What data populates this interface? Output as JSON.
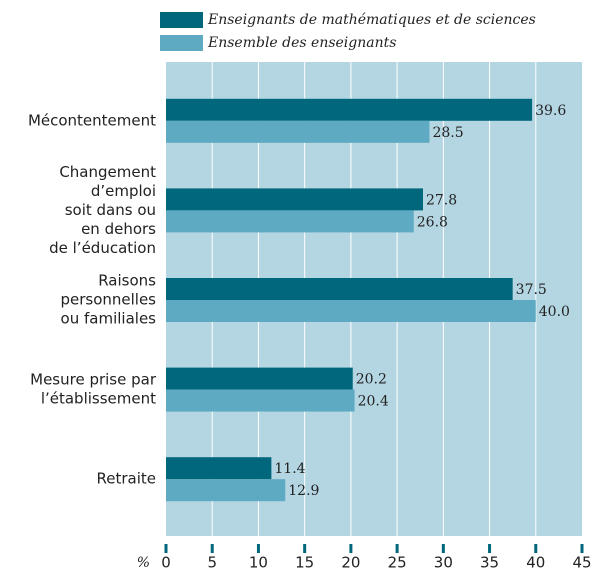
{
  "chart_data": {
    "type": "bar",
    "orientation": "horizontal",
    "categories": [
      [
        "Mécontentement"
      ],
      [
        "Changement",
        "d’emploi",
        "soit dans ou",
        "en dehors",
        "de l’éducation"
      ],
      [
        "Raisons",
        "personnelles",
        "ou familiales"
      ],
      [
        "Mesure prise par",
        "l’établissement"
      ],
      [
        "Retraite"
      ]
    ],
    "series": [
      {
        "name": "Enseignants de mathématiques et de sciences",
        "color": "#00677c",
        "values": [
          39.6,
          27.8,
          37.5,
          20.2,
          11.4
        ],
        "value_labels": [
          "39.6",
          "27.8",
          "37.5",
          "20.2",
          "11.4"
        ]
      },
      {
        "name": "Ensemble des enseignants",
        "color": "#5eaac2",
        "values": [
          28.5,
          26.8,
          40.0,
          20.4,
          12.9
        ],
        "value_labels": [
          "28.5",
          "26.8",
          "40.0",
          "20.4",
          "12.9"
        ]
      }
    ],
    "xlabel": "%",
    "xlim": [
      0,
      45
    ],
    "xticks": [
      0,
      5,
      10,
      15,
      20,
      25,
      30,
      35,
      40,
      45
    ],
    "grid": true,
    "legend": "top"
  }
}
